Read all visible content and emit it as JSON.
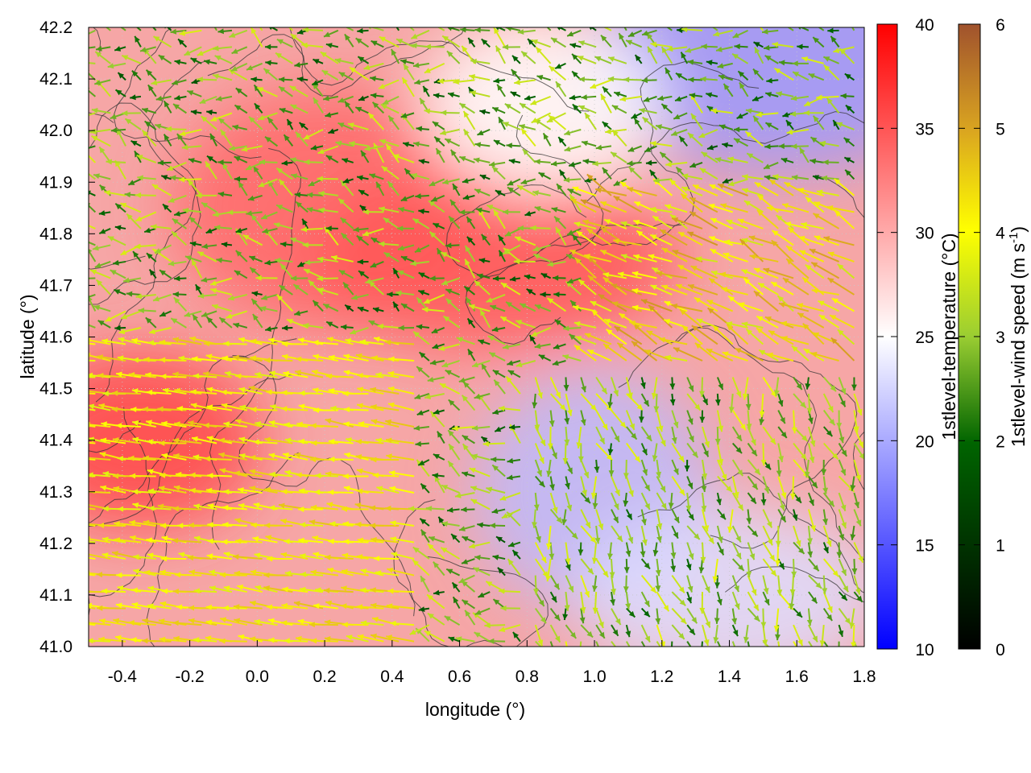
{
  "chart_data": {
    "type": "heatmap",
    "xlabel": "longitude (°)",
    "ylabel": "latitude (°)",
    "xlim": [
      -0.5,
      1.8
    ],
    "ylim": [
      41.0,
      42.2
    ],
    "x_ticks": [
      "-0.4",
      "-0.2",
      "0.0",
      "0.2",
      "0.4",
      "0.6",
      "0.8",
      "1.0",
      "1.2",
      "1.4",
      "1.6",
      "1.8"
    ],
    "y_ticks": [
      "41.0",
      "41.1",
      "41.2",
      "41.3",
      "41.4",
      "41.5",
      "41.6",
      "41.7",
      "41.8",
      "41.9",
      "42.0",
      "42.1",
      "42.2"
    ],
    "grid": true,
    "overlays": [
      "temperature field",
      "terrain contours",
      "wind vectors"
    ],
    "temperature_colorbar": {
      "label": "1stlevel-temperature (°C)",
      "range": [
        10,
        40
      ],
      "ticks": [
        "10",
        "15",
        "20",
        "25",
        "30",
        "35",
        "40"
      ],
      "colors": [
        "#0000ff",
        "#ffffff",
        "#ff0000"
      ]
    },
    "wind_colorbar": {
      "label_main": "1stlevel-wind speed (m s",
      "label_sup": "-1",
      "label_end": ")",
      "range": [
        0,
        6
      ],
      "ticks": [
        "0",
        "1",
        "2",
        "3",
        "4",
        "5",
        "6"
      ],
      "colors": [
        "#000000",
        "#006400",
        "#9acd32",
        "#ffff00",
        "#daa520",
        "#a0522d"
      ]
    },
    "temperature_regions": [
      {
        "lon": -0.35,
        "lat": 41.4,
        "value": 36
      },
      {
        "lon": 0.2,
        "lat": 41.85,
        "value": 34
      },
      {
        "lon": 0.7,
        "lat": 41.75,
        "value": 35
      },
      {
        "lon": 1.0,
        "lat": 41.3,
        "value": 21
      },
      {
        "lon": 1.4,
        "lat": 41.1,
        "value": 23
      },
      {
        "lon": 1.55,
        "lat": 42.15,
        "value": 19
      },
      {
        "lon": 0.85,
        "lat": 42.05,
        "value": 25
      }
    ]
  }
}
